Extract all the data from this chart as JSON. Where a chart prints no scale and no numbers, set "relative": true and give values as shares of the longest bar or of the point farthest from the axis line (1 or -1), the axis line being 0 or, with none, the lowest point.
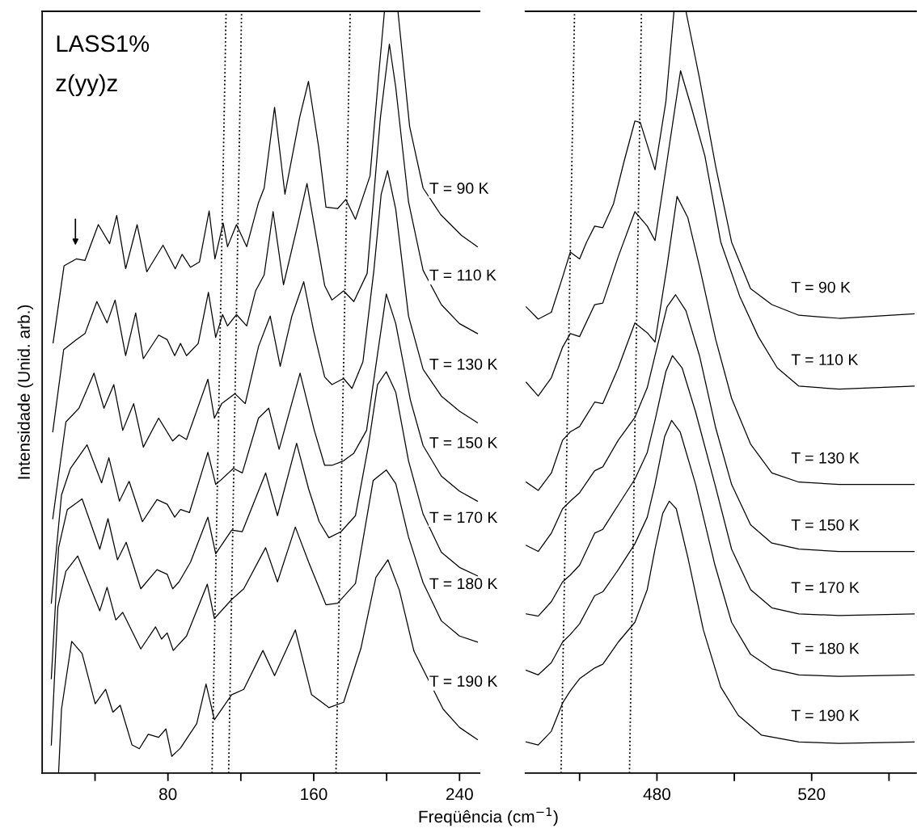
{
  "chart_data": [
    {
      "type": "line",
      "relative": true,
      "xlabel": "Freqüência (cm$^{−1}$)",
      "ylabel": "Intensidade (Unid. arb.)",
      "xlim": [
        11,
        251
      ],
      "xticks": [
        {
          "value": 40,
          "label": null
        },
        80,
        {
          "value": 120,
          "label": null
        },
        160,
        {
          "value": 200,
          "label": null
        },
        240
      ],
      "annotations": [
        "LASS1%",
        "z(yy)z"
      ],
      "series": [
        {
          "name": "T = 90 K",
          "color": "#000000",
          "x": [
            17,
            23,
            29.7,
            34.5,
            41.8,
            48,
            51.9,
            56.8,
            63.1,
            68.4,
            77.3,
            84,
            87.8,
            92.4,
            97.3,
            102.6,
            105.8,
            110.3,
            112.7,
            117.6,
            123.2,
            129.7,
            132.8,
            138.5,
            144.2,
            152.3,
            157.1,
            162.7,
            166.7,
            173.1,
            177.6,
            182.9,
            190.9,
            195.7,
            198.8,
            206.2,
            212.6,
            220,
            229.7,
            241,
            249.8
          ],
          "values": [
            0.565,
            0.666,
            0.675,
            0.673,
            0.72,
            0.695,
            0.732,
            0.662,
            0.72,
            0.658,
            0.693,
            0.662,
            0.681,
            0.664,
            0.671,
            0.738,
            0.675,
            0.722,
            0.691,
            0.72,
            0.691,
            0.749,
            0.768,
            0.874,
            0.76,
            0.861,
            0.908,
            0.822,
            0.743,
            0.741,
            0.753,
            0.727,
            0.784,
            0.918,
            1.0,
            1.0,
            0.849,
            0.768,
            0.733,
            0.706,
            0.691
          ]
        },
        {
          "name": "T = 110 K",
          "color": "#000000",
          "x": [
            16.8,
            22.8,
            29.7,
            34.5,
            41,
            46.6,
            51,
            56.8,
            62.3,
            66.5,
            74.9,
            79.6,
            83.7,
            86.9,
            90.2,
            96.6,
            102.2,
            106.2,
            110,
            112.7,
            117.6,
            123.2,
            128.1,
            132.8,
            137.7,
            143.4,
            151.4,
            156.3,
            161.2,
            166,
            170,
            176.4,
            182,
            189.3,
            196.6,
            201.5,
            205,
            212,
            220,
            230,
            240,
            249.8
          ],
          "values": [
            0.448,
            0.556,
            0.569,
            0.577,
            0.619,
            0.591,
            0.621,
            0.548,
            0.604,
            0.544,
            0.575,
            0.569,
            0.548,
            0.564,
            0.548,
            0.564,
            0.631,
            0.572,
            0.602,
            0.587,
            0.602,
            0.587,
            0.633,
            0.654,
            0.737,
            0.641,
            0.722,
            0.774,
            0.706,
            0.64,
            0.621,
            0.633,
            0.619,
            0.656,
            0.861,
            0.957,
            0.9,
            0.75,
            0.66,
            0.615,
            0.59,
            0.577
          ]
        },
        {
          "name": "T = 130 K",
          "color": "#000000",
          "x": [
            16.8,
            24,
            31.2,
            39.4,
            44.9,
            50.3,
            55.2,
            61.2,
            66.5,
            74.9,
            82.6,
            86.1,
            90.2,
            101.9,
            105.5,
            109.5,
            116.8,
            122.4,
            129.7,
            136.1,
            141.6,
            148,
            154.5,
            160,
            166,
            170,
            176.4,
            181,
            187,
            193,
            197,
            200.5,
            205,
            212,
            220,
            230,
            240,
            249.8
          ],
          "values": [
            0.334,
            0.461,
            0.479,
            0.525,
            0.479,
            0.51,
            0.45,
            0.485,
            0.428,
            0.466,
            0.436,
            0.444,
            0.438,
            0.517,
            0.466,
            0.485,
            0.498,
            0.485,
            0.56,
            0.6,
            0.534,
            0.6,
            0.645,
            0.58,
            0.52,
            0.51,
            0.518,
            0.505,
            0.54,
            0.66,
            0.76,
            0.791,
            0.74,
            0.6,
            0.53,
            0.495,
            0.475,
            0.46
          ]
        },
        {
          "name": "T = 150 K",
          "color": "#000000",
          "x": [
            16,
            21.6,
            26.5,
            35.6,
            43.6,
            47.6,
            53.4,
            58.7,
            66,
            74,
            79.6,
            83.7,
            86.9,
            91.8,
            101.9,
            106.2,
            108.7,
            115.9,
            120.8,
            129.7,
            135.3,
            141,
            152.5,
            160.3,
            166,
            170,
            176.4,
            182,
            189,
            195,
            199.8,
            205,
            213,
            220,
            230,
            240,
            249.8
          ],
          "values": [
            0.223,
            0.365,
            0.4,
            0.431,
            0.381,
            0.414,
            0.357,
            0.383,
            0.33,
            0.359,
            0.353,
            0.336,
            0.346,
            0.342,
            0.421,
            0.379,
            0.384,
            0.4,
            0.394,
            0.466,
            0.479,
            0.425,
            0.525,
            0.45,
            0.404,
            0.404,
            0.41,
            0.42,
            0.45,
            0.55,
            0.629,
            0.59,
            0.49,
            0.43,
            0.39,
            0.37,
            0.357
          ]
        },
        {
          "name": "T = 170 K",
          "color": "#000000",
          "x": [
            16,
            20,
            24.8,
            32.9,
            42.6,
            47.1,
            52.3,
            57.1,
            65.1,
            74,
            79.6,
            82.6,
            86.1,
            92.4,
            101.9,
            106.2,
            115,
            120.8,
            133.6,
            140.1,
            150.6,
            157.2,
            163,
            168.3,
            175,
            182.9,
            190,
            195,
            199.8,
            205,
            212,
            220,
            230,
            240,
            249.8
          ],
          "values": [
            0.124,
            0.296,
            0.346,
            0.36,
            0.294,
            0.334,
            0.28,
            0.303,
            0.242,
            0.267,
            0.261,
            0.242,
            0.251,
            0.277,
            0.336,
            0.288,
            0.319,
            0.317,
            0.394,
            0.338,
            0.433,
            0.373,
            0.33,
            0.309,
            0.317,
            0.338,
            0.43,
            0.51,
            0.527,
            0.5,
            0.41,
            0.34,
            0.29,
            0.27,
            0.259
          ]
        },
        {
          "name": "T = 180 K",
          "color": "#000000",
          "x": [
            16,
            19.6,
            24,
            30.5,
            42.6,
            46.6,
            51.4,
            55.2,
            65.1,
            73.2,
            76.5,
            79.6,
            82.9,
            90.2,
            101.6,
            105.5,
            115,
            121.6,
            133.6,
            140.1,
            149.9,
            157.2,
            166.7,
            173.1,
            182.9,
            192.6,
            199.8,
            205,
            212,
            220,
            230,
            240,
            249.8
          ],
          "values": [
            0.037,
            0.218,
            0.265,
            0.285,
            0.213,
            0.244,
            0.201,
            0.211,
            0.163,
            0.192,
            0.176,
            0.184,
            0.161,
            0.18,
            0.248,
            0.203,
            0.228,
            0.242,
            0.296,
            0.251,
            0.323,
            0.277,
            0.221,
            0.223,
            0.249,
            0.384,
            0.398,
            0.38,
            0.31,
            0.25,
            0.2,
            0.18,
            0.172
          ]
        },
        {
          "name": "T = 190 K",
          "color": "#000000",
          "x": [
            20,
            21.6,
            27.2,
            32.9,
            40.1,
            45.8,
            49.8,
            53.8,
            60.3,
            64.3,
            69.2,
            74.9,
            78.9,
            82.1,
            86.9,
            95.8,
            100.9,
            105.5,
            115,
            121.6,
            132.1,
            138.5,
            149.9,
            158.8,
            168.3,
            176.4,
            185.9,
            194.1,
            200.7,
            207,
            215,
            231,
            240,
            249.8
          ],
          "values": [
            0.0,
            0.084,
            0.173,
            0.157,
            0.091,
            0.11,
            0.08,
            0.089,
            0.037,
            0.032,
            0.051,
            0.047,
            0.058,
            0.022,
            0.033,
            0.065,
            0.117,
            0.07,
            0.103,
            0.11,
            0.161,
            0.128,
            0.188,
            0.103,
            0.086,
            0.093,
            0.164,
            0.257,
            0.28,
            0.24,
            0.16,
            0.084,
            0.06,
            0.044
          ]
        },
        {
          "color": "#000000",
          "line_style": "dotted",
          "x": [
            104.2,
            111.9
          ],
          "values": [
            0,
            1
          ]
        },
        {
          "color": "#000000",
          "line_style": "dotted",
          "x": [
            113.3,
            120.4
          ],
          "values": [
            0,
            1
          ]
        },
        {
          "color": "#000000",
          "line_style": "dotted",
          "x": [
            172.2,
            180
          ],
          "values": [
            0,
            1
          ]
        }
      ]
    },
    {
      "type": "line",
      "relative": true,
      "xlim": [
        446,
        547
      ],
      "xticks": [
        {
          "value": 460,
          "label": null
        },
        480,
        {
          "value": 500,
          "label": null
        },
        520,
        {
          "value": 540,
          "label": null
        }
      ],
      "series": [
        {
          "name": "T = 90 K",
          "color": "#000000",
          "x": [
            446.2,
            449.3,
            452.7,
            455.6,
            457.6,
            460,
            461.8,
            463.9,
            466,
            468.75,
            471.5,
            474.3,
            475.7,
            479.5,
            482.3,
            484.4,
            487.5,
            491,
            495.2,
            499.3,
            504.2,
            509.7,
            516.7,
            527.1,
            546.5
          ],
          "values": [
            0.612,
            0.596,
            0.605,
            0.651,
            0.684,
            0.675,
            0.697,
            0.718,
            0.716,
            0.747,
            0.803,
            0.856,
            0.854,
            0.792,
            0.881,
            1.0,
            1.0,
            0.912,
            0.796,
            0.697,
            0.636,
            0.615,
            0.601,
            0.597,
            0.603
          ]
        },
        {
          "name": "T = 110 K",
          "color": "#000000",
          "x": [
            446.2,
            449.3,
            452.7,
            455.6,
            457.6,
            460,
            463.9,
            466,
            470,
            474.3,
            477.5,
            479.5,
            482.6,
            486.1,
            488.9,
            492.4,
            496.5,
            501.4,
            506.2,
            511.1,
            516.7,
            527.1,
            546.5
          ],
          "values": [
            0.513,
            0.495,
            0.519,
            0.559,
            0.577,
            0.573,
            0.615,
            0.617,
            0.678,
            0.737,
            0.718,
            0.699,
            0.803,
            0.922,
            0.874,
            0.81,
            0.697,
            0.626,
            0.573,
            0.532,
            0.508,
            0.504,
            0.508
          ]
        },
        {
          "name": "T = 130 K",
          "color": "#000000",
          "x": [
            446.2,
            449.3,
            452.7,
            455.6,
            457.6,
            460,
            463.9,
            466,
            470,
            474.3,
            477.5,
            479.5,
            482.6,
            485.2,
            488,
            491,
            495.2,
            499.3,
            504.2,
            509.7,
            516.7,
            527.1,
            546.5
          ],
          "values": [
            0.382,
            0.371,
            0.394,
            0.437,
            0.448,
            0.455,
            0.487,
            0.485,
            0.532,
            0.591,
            0.578,
            0.566,
            0.665,
            0.757,
            0.729,
            0.665,
            0.569,
            0.492,
            0.432,
            0.394,
            0.382,
            0.379,
            0.379
          ]
        },
        {
          "name": "T = 150 K",
          "color": "#000000",
          "x": [
            446.2,
            449.3,
            452.7,
            455.6,
            457.6,
            460,
            463.9,
            466,
            470,
            474.3,
            477.5,
            479.5,
            482.6,
            484.8,
            487.5,
            491,
            495.2,
            499.3,
            504.2,
            509.7,
            516.7,
            527.1,
            546.5
          ],
          "values": [
            0.299,
            0.291,
            0.315,
            0.347,
            0.357,
            0.368,
            0.397,
            0.402,
            0.437,
            0.467,
            0.506,
            0.548,
            0.612,
            0.628,
            0.607,
            0.548,
            0.453,
            0.379,
            0.326,
            0.302,
            0.294,
            0.291,
            0.291
          ]
        },
        {
          "name": "T = 170 K",
          "color": "#000000",
          "x": [
            446.2,
            449.3,
            452.7,
            455.6,
            457.6,
            460,
            463.9,
            466,
            470,
            474.3,
            477.5,
            479.5,
            482.3,
            484,
            486.5,
            490,
            495,
            499.3,
            504.2,
            509.7,
            516.7,
            527.1,
            546.5
          ],
          "values": [
            0.209,
            0.206,
            0.225,
            0.251,
            0.26,
            0.273,
            0.315,
            0.32,
            0.352,
            0.386,
            0.421,
            0.463,
            0.527,
            0.548,
            0.532,
            0.474,
            0.379,
            0.294,
            0.241,
            0.217,
            0.209,
            0.207,
            0.209
          ]
        },
        {
          "name": "T = 180 K",
          "color": "#000000",
          "x": [
            446.2,
            449.3,
            452.7,
            455.6,
            457.6,
            460,
            463.9,
            466,
            470,
            474.3,
            477.5,
            479.5,
            482,
            483.8,
            486,
            490,
            495,
            499.3,
            504.2,
            509.7,
            516.7,
            527.1,
            546.5
          ],
          "values": [
            0.135,
            0.129,
            0.145,
            0.172,
            0.182,
            0.196,
            0.233,
            0.238,
            0.267,
            0.301,
            0.336,
            0.379,
            0.442,
            0.463,
            0.448,
            0.379,
            0.273,
            0.198,
            0.156,
            0.137,
            0.129,
            0.127,
            0.129
          ]
        },
        {
          "name": "T = 190 K",
          "color": "#000000",
          "x": [
            446.2,
            449.3,
            452.7,
            455.6,
            457.6,
            460,
            463.9,
            466,
            470,
            474.3,
            477.5,
            479.5,
            481.5,
            483.2,
            485,
            488,
            492,
            496.5,
            501,
            507,
            516.7,
            527.1,
            546.5
          ],
          "values": [
            0.041,
            0.037,
            0.055,
            0.092,
            0.108,
            0.124,
            0.138,
            0.143,
            0.172,
            0.198,
            0.241,
            0.294,
            0.341,
            0.357,
            0.347,
            0.283,
            0.188,
            0.113,
            0.076,
            0.05,
            0.041,
            0.039,
            0.041
          ]
        },
        {
          "color": "#000000",
          "line_style": "dotted",
          "x": [
            455.2,
            458.7
          ],
          "values": [
            0,
            1
          ]
        },
        {
          "color": "#000000",
          "line_style": "dotted",
          "x": [
            472.9,
            476
          ],
          "values": [
            0,
            1
          ]
        }
      ]
    }
  ]
}
